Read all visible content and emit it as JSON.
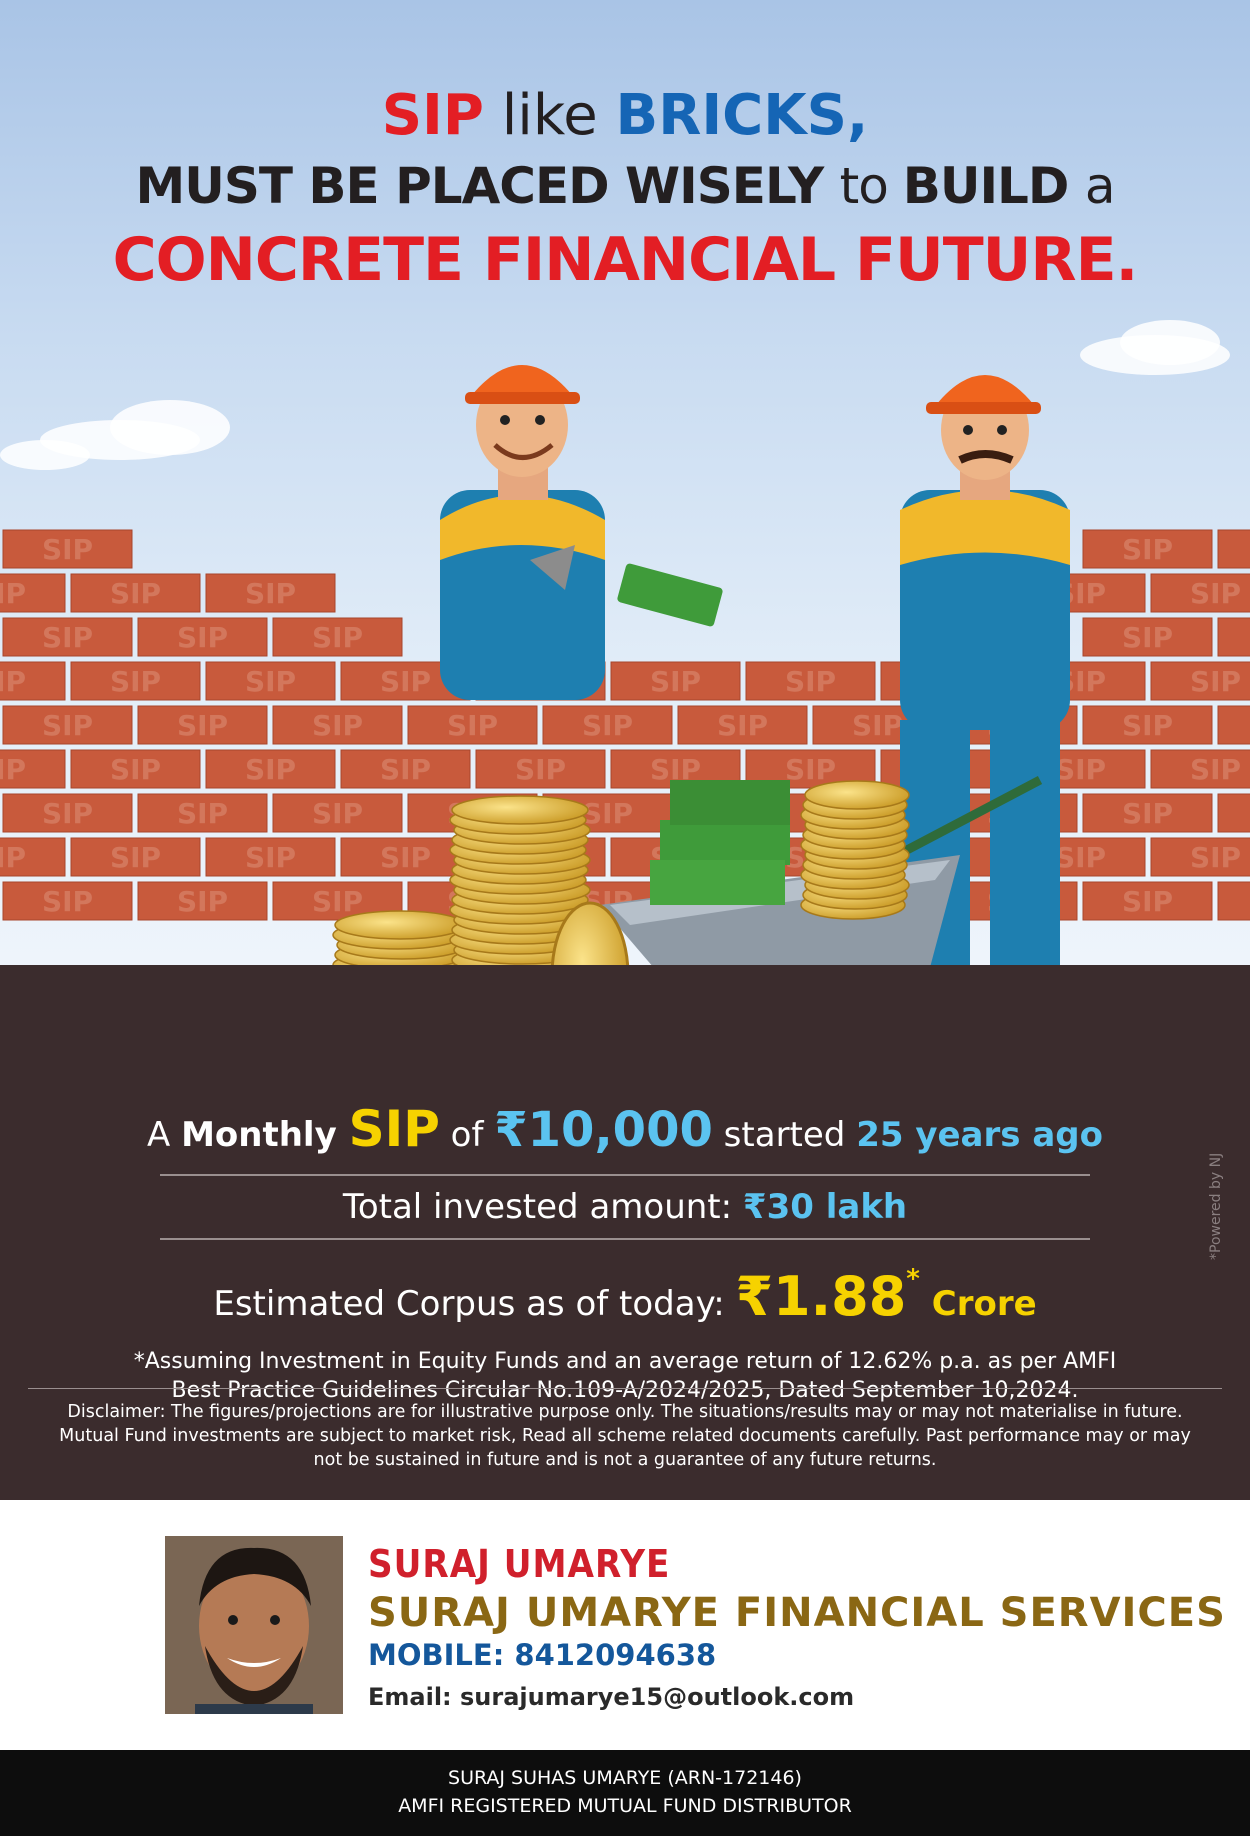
{
  "headline": {
    "w1": "SIP",
    "w2": " like ",
    "w3": "BRICKS,",
    "line2a": "MUST BE PLACED WISELY ",
    "line2b": "to ",
    "line2c": "BUILD ",
    "line2d": "a",
    "line3": "CONCRETE FINANCIAL FUTURE."
  },
  "brick_text": "SIP",
  "stats": {
    "r1a": "A ",
    "r1b": "Monthly ",
    "r1sip": "SIP",
    "r1c": " of ",
    "r1amt": "₹10,000",
    "r1d": " started ",
    "r1yrs": "25 years ago",
    "r2a": "Total invested amount: ",
    "r2b": "₹30 lakh",
    "r3a": "Estimated Corpus as of today: ",
    "r3b": "₹1.88",
    "r3star": "*",
    "r3c": " Crore",
    "assume1": "*Assuming Investment in Equity Funds and an average return of 12.62% p.a. as per AMFI",
    "assume2": "Best Practice  Guidelines Circular No.109-A/2024/2025, Dated September 10,2024."
  },
  "disclaimer": {
    "l1": "Disclaimer: The figures/projections are for illustrative purpose only. The situations/results may or may not materialise in future.",
    "l2": "Mutual Fund investments are subject to market risk, Read all scheme related documents carefully. Past performance may or may",
    "l3": "not be sustained in future and is not a guarantee of any future returns."
  },
  "powered": "*Powered by NJ",
  "contact": {
    "name": "SURAJ UMARYE",
    "firm": "SURAJ UMARYE FINANCIAL SERVICES",
    "mobile": "MOBILE: 8412094638",
    "email": "Email: surajumarye15@outlook.com"
  },
  "footer": {
    "l1": "SURAJ SUHAS UMARYE (ARN-172146)",
    "l2": "AMFI REGISTERED MUTUAL FUND DISTRIBUTOR"
  },
  "colors": {
    "red": "#e31e24",
    "blue": "#1565b5",
    "yellow": "#f6d200",
    "cyan": "#5bc3f0",
    "ground": "#3b2c2d",
    "brick": "#c85a3c"
  }
}
